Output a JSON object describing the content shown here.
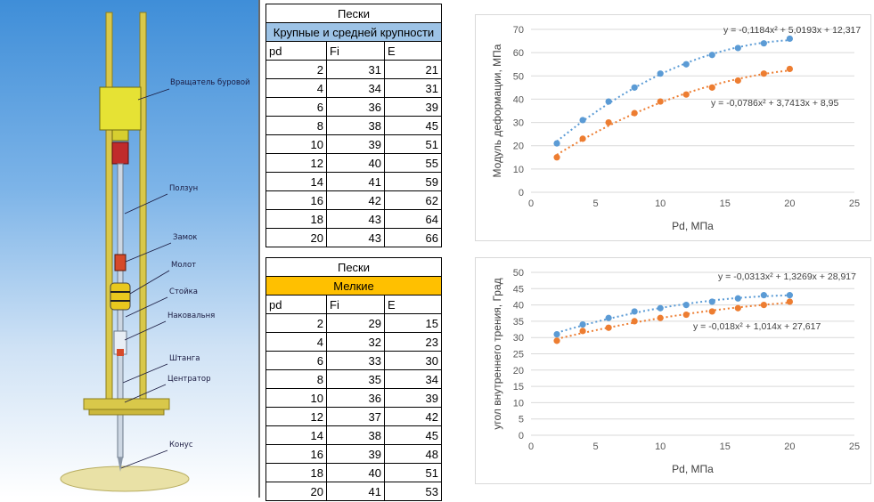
{
  "illustration": {
    "callouts": [
      "Вращатель буровой",
      "Ползун",
      "Замок",
      "Молот",
      "Стойка",
      "Наковальня",
      "Штанга",
      "Центратор",
      "Конус"
    ]
  },
  "tables": [
    {
      "title": "Пески",
      "subtitle": "Крупные и средней крупности",
      "subtitle_bg": "#9dc3e6",
      "headers": [
        "pd",
        "Fi",
        "E"
      ],
      "rows": [
        [
          2,
          31,
          21
        ],
        [
          4,
          34,
          31
        ],
        [
          6,
          36,
          39
        ],
        [
          8,
          38,
          45
        ],
        [
          10,
          39,
          51
        ],
        [
          12,
          40,
          55
        ],
        [
          14,
          41,
          59
        ],
        [
          16,
          42,
          62
        ],
        [
          18,
          43,
          64
        ],
        [
          20,
          43,
          66
        ]
      ]
    },
    {
      "title": "Пески",
      "subtitle": "Мелкие",
      "subtitle_bg": "#ffc000",
      "headers": [
        "pd",
        "Fi",
        "E"
      ],
      "rows": [
        [
          2,
          29,
          15
        ],
        [
          4,
          32,
          23
        ],
        [
          6,
          33,
          30
        ],
        [
          8,
          35,
          34
        ],
        [
          10,
          36,
          39
        ],
        [
          12,
          37,
          42
        ],
        [
          14,
          38,
          45
        ],
        [
          16,
          39,
          48
        ],
        [
          18,
          40,
          51
        ],
        [
          20,
          41,
          53
        ]
      ]
    }
  ],
  "chart_data": [
    {
      "type": "scatter",
      "xlabel": "Pd, МПа",
      "ylabel": "Модуль деформации, МПа",
      "xlim": [
        0,
        25
      ],
      "ylim": [
        0,
        70
      ],
      "xticks": [
        0,
        5,
        10,
        15,
        20,
        25
      ],
      "yticks": [
        0,
        10,
        20,
        30,
        40,
        50,
        60,
        70
      ],
      "grid": true,
      "series": [
        {
          "x": [
            2,
            4,
            6,
            8,
            10,
            12,
            14,
            16,
            18,
            20
          ],
          "values": [
            21,
            31,
            39,
            45,
            51,
            55,
            59,
            62,
            64,
            66
          ],
          "color": "#5b9bd5",
          "trendline": {
            "a": -0.1184,
            "b": 5.0193,
            "c": 12.317,
            "label": "y = -0,1184x² + 5,0193x + 12,317"
          }
        },
        {
          "x": [
            2,
            4,
            6,
            8,
            10,
            12,
            14,
            16,
            18,
            20
          ],
          "values": [
            15,
            23,
            30,
            34,
            39,
            42,
            45,
            48,
            51,
            53
          ],
          "color": "#ed7d31",
          "trendline": {
            "a": -0.0786,
            "b": 3.7413,
            "c": 8.95,
            "label": "y = -0,0786x² + 3,7413x + 8,95"
          }
        }
      ]
    },
    {
      "type": "scatter",
      "xlabel": "Pd, МПа",
      "ylabel": "угол внутреннего трения, Град",
      "xlim": [
        0,
        25
      ],
      "ylim": [
        0,
        50
      ],
      "xticks": [
        0,
        5,
        10,
        15,
        20,
        25
      ],
      "yticks": [
        0,
        5,
        10,
        15,
        20,
        25,
        30,
        35,
        40,
        45,
        50
      ],
      "grid": true,
      "series": [
        {
          "x": [
            2,
            4,
            6,
            8,
            10,
            12,
            14,
            16,
            18,
            20
          ],
          "values": [
            31,
            34,
            36,
            38,
            39,
            40,
            41,
            42,
            43,
            43
          ],
          "color": "#5b9bd5",
          "trendline": {
            "a": -0.0313,
            "b": 1.3269,
            "c": 28.917,
            "label": "y = -0,0313x² + 1,3269x + 28,917"
          }
        },
        {
          "x": [
            2,
            4,
            6,
            8,
            10,
            12,
            14,
            16,
            18,
            20
          ],
          "values": [
            29,
            32,
            33,
            35,
            36,
            37,
            38,
            39,
            40,
            41
          ],
          "color": "#ed7d31",
          "trendline": {
            "a": -0.018,
            "b": 1.014,
            "c": 27.617,
            "label": "y = -0,018x² + 1,014x + 27,617"
          }
        }
      ]
    }
  ]
}
